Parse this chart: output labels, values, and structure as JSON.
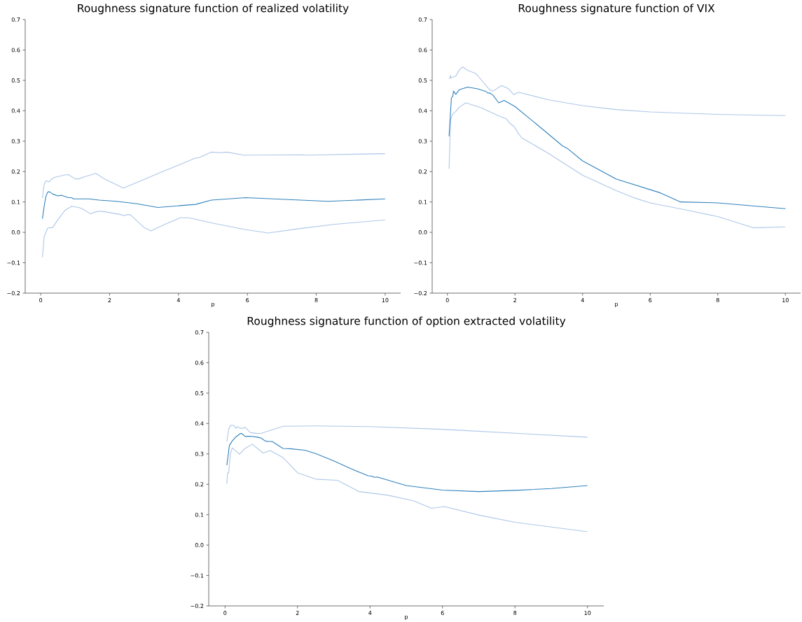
{
  "chart_data": [
    {
      "type": "line",
      "title": "Roughness signature function of realized volatility",
      "xlabel": "p",
      "xlim": [
        -0.45,
        10.45
      ],
      "ylim": [
        -0.2,
        0.7
      ],
      "xticks": [
        0,
        2,
        4,
        6,
        8,
        10
      ],
      "yticks": [
        {
          "value": -0.2,
          "label": "−0.2"
        },
        {
          "value": -0.1,
          "label": "−0.1"
        },
        {
          "value": 0,
          "label": "0.0"
        },
        0.1,
        0.2,
        0.3,
        0.4,
        0.5,
        0.6,
        0.7
      ],
      "series": [
        {
          "color": "#aec7e8",
          "x": [
            0.05,
            0.1,
            0.15,
            0.25,
            0.3,
            0.4,
            0.7,
            0.8,
            1.0,
            1.1,
            1.3,
            1.6,
            1.85,
            2.4,
            3.0,
            3.5,
            4.0,
            4.5,
            4.6,
            4.95,
            5.2,
            5.4,
            5.9,
            7.6,
            7.7,
            10
          ],
          "values": [
            0.113,
            0.158,
            0.17,
            0.166,
            0.174,
            0.181,
            0.189,
            0.19,
            0.176,
            0.176,
            0.184,
            0.194,
            0.176,
            0.146,
            0.174,
            0.198,
            0.221,
            0.245,
            0.246,
            0.264,
            0.262,
            0.264,
            0.254,
            0.255,
            0.254,
            0.259
          ]
        },
        {
          "color": "#aec7e8",
          "x": [
            0.05,
            0.1,
            0.2,
            0.3,
            0.35,
            0.5,
            0.7,
            0.9,
            1.1,
            1.2,
            1.45,
            1.65,
            1.8,
            2.35,
            2.4,
            2.5,
            2.6,
            3.0,
            3.2,
            3.6,
            4.05,
            4.3,
            5.0,
            5.9,
            6.6,
            7.5,
            8.5,
            10
          ],
          "values": [
            -0.082,
            -0.014,
            0.014,
            0.016,
            0.016,
            0.042,
            0.072,
            0.086,
            0.082,
            0.078,
            0.061,
            0.069,
            0.069,
            0.058,
            0.055,
            0.058,
            0.058,
            0.016,
            0.005,
            0.026,
            0.048,
            0.048,
            0.03,
            0.01,
            -0.002,
            0.012,
            0.026,
            0.041
          ]
        },
        {
          "color": "#3182bd",
          "x": [
            0.05,
            0.1,
            0.15,
            0.2,
            0.25,
            0.35,
            0.5,
            0.6,
            0.8,
            0.9,
            0.95,
            1.4,
            1.7,
            2.2,
            2.8,
            3.4,
            4.5,
            4.95,
            5.95,
            8.35,
            10
          ],
          "values": [
            0.045,
            0.086,
            0.118,
            0.132,
            0.134,
            0.126,
            0.12,
            0.122,
            0.114,
            0.114,
            0.11,
            0.11,
            0.106,
            0.102,
            0.094,
            0.082,
            0.092,
            0.106,
            0.114,
            0.102,
            0.11
          ]
        }
      ]
    },
    {
      "type": "line",
      "title": "Roughness signature function of VIX",
      "xlabel": "p",
      "xlim": [
        -0.45,
        10.45
      ],
      "ylim": [
        -0.2,
        0.7
      ],
      "xticks": [
        0,
        2,
        4,
        6,
        8,
        10
      ],
      "yticks": [
        {
          "value": -0.2,
          "label": "−0.2"
        },
        {
          "value": -0.1,
          "label": "−0.1"
        },
        {
          "value": 0,
          "label": "0.0"
        },
        0.1,
        0.2,
        0.3,
        0.4,
        0.5,
        0.6,
        0.7
      ],
      "series": [
        {
          "color": "#aec7e8",
          "x": [
            0.05,
            0.08,
            0.09,
            0.1,
            0.25,
            0.35,
            0.45,
            0.6,
            0.85,
            1.0,
            1.25,
            1.35,
            1.6,
            1.8,
            1.97,
            2.1,
            3.0,
            4.0,
            5.0,
            6.0,
            8.0,
            10
          ],
          "values": [
            0.505,
            0.509,
            0.517,
            0.508,
            0.514,
            0.534,
            0.544,
            0.533,
            0.522,
            0.502,
            0.469,
            0.465,
            0.483,
            0.473,
            0.453,
            0.461,
            0.436,
            0.417,
            0.404,
            0.396,
            0.388,
            0.384
          ]
        },
        {
          "color": "#aec7e8",
          "x": [
            0.05,
            0.08,
            0.1,
            0.15,
            0.25,
            0.35,
            0.55,
            1.0,
            1.5,
            1.75,
            1.85,
            1.97,
            2.1,
            2.2,
            3.0,
            4.0,
            5.0,
            5.5,
            5.6,
            6.0,
            7.0,
            8.0,
            9.05,
            10
          ],
          "values": [
            0.209,
            0.318,
            0.373,
            0.388,
            0.398,
            0.412,
            0.426,
            0.41,
            0.384,
            0.373,
            0.358,
            0.349,
            0.325,
            0.311,
            0.259,
            0.188,
            0.137,
            0.115,
            0.111,
            0.097,
            0.075,
            0.052,
            0.015,
            0.018
          ]
        },
        {
          "color": "#3182bd",
          "x": [
            0.05,
            0.08,
            0.12,
            0.16,
            0.18,
            0.25,
            0.35,
            0.6,
            0.9,
            1.15,
            1.2,
            1.25,
            1.35,
            1.52,
            1.68,
            2.0,
            2.8,
            3.4,
            3.55,
            4.0,
            5.0,
            6.3,
            6.9,
            8.0,
            10
          ],
          "values": [
            0.316,
            0.373,
            0.443,
            0.447,
            0.465,
            0.454,
            0.469,
            0.478,
            0.472,
            0.463,
            0.458,
            0.459,
            0.451,
            0.426,
            0.434,
            0.414,
            0.341,
            0.285,
            0.276,
            0.235,
            0.175,
            0.13,
            0.1,
            0.097,
            0.078
          ]
        }
      ]
    },
    {
      "type": "line",
      "title": "Roughness signature function of option extracted volatility",
      "xlabel": "p",
      "xlim": [
        -0.45,
        10.45
      ],
      "ylim": [
        -0.2,
        0.7
      ],
      "xticks": [
        0,
        2,
        4,
        6,
        8,
        10
      ],
      "yticks": [
        {
          "value": -0.2,
          "label": "−0.2"
        },
        {
          "value": -0.1,
          "label": "−0.1"
        },
        {
          "value": 0,
          "label": "0.0"
        },
        0.1,
        0.2,
        0.3,
        0.4,
        0.5,
        0.6,
        0.7
      ],
      "series": [
        {
          "color": "#aec7e8",
          "x": [
            0.05,
            0.1,
            0.15,
            0.25,
            0.3,
            0.35,
            0.4,
            0.5,
            0.55,
            0.7,
            0.9,
            1.0,
            1.6,
            2.5,
            4.0,
            6.0,
            8.0,
            10
          ],
          "values": [
            0.341,
            0.381,
            0.394,
            0.394,
            0.384,
            0.39,
            0.385,
            0.384,
            0.388,
            0.37,
            0.367,
            0.368,
            0.391,
            0.392,
            0.39,
            0.381,
            0.368,
            0.355
          ]
        },
        {
          "color": "#aec7e8",
          "x": [
            0.05,
            0.07,
            0.1,
            0.15,
            0.2,
            0.4,
            0.55,
            0.75,
            1.05,
            1.25,
            1.6,
            2.0,
            2.5,
            3.1,
            3.7,
            4.5,
            5.2,
            5.7,
            6.05,
            7.0,
            8.0,
            10
          ],
          "values": [
            0.202,
            0.238,
            0.238,
            0.301,
            0.32,
            0.299,
            0.318,
            0.332,
            0.303,
            0.311,
            0.288,
            0.238,
            0.217,
            0.213,
            0.176,
            0.164,
            0.146,
            0.121,
            0.127,
            0.099,
            0.075,
            0.044
          ]
        },
        {
          "color": "#3182bd",
          "x": [
            0.05,
            0.1,
            0.12,
            0.2,
            0.3,
            0.4,
            0.45,
            0.55,
            0.7,
            0.9,
            1.0,
            1.1,
            1.2,
            1.3,
            1.6,
            1.8,
            2.2,
            2.5,
            3.0,
            3.5,
            3.95,
            4.05,
            4.12,
            4.2,
            5.0,
            6.0,
            7.0,
            8.0,
            9.0,
            10
          ],
          "values": [
            0.263,
            0.309,
            0.328,
            0.343,
            0.356,
            0.365,
            0.368,
            0.358,
            0.358,
            0.355,
            0.352,
            0.343,
            0.341,
            0.341,
            0.318,
            0.317,
            0.312,
            0.301,
            0.277,
            0.25,
            0.228,
            0.227,
            0.223,
            0.224,
            0.196,
            0.181,
            0.176,
            0.18,
            0.186,
            0.196
          ]
        }
      ]
    }
  ]
}
